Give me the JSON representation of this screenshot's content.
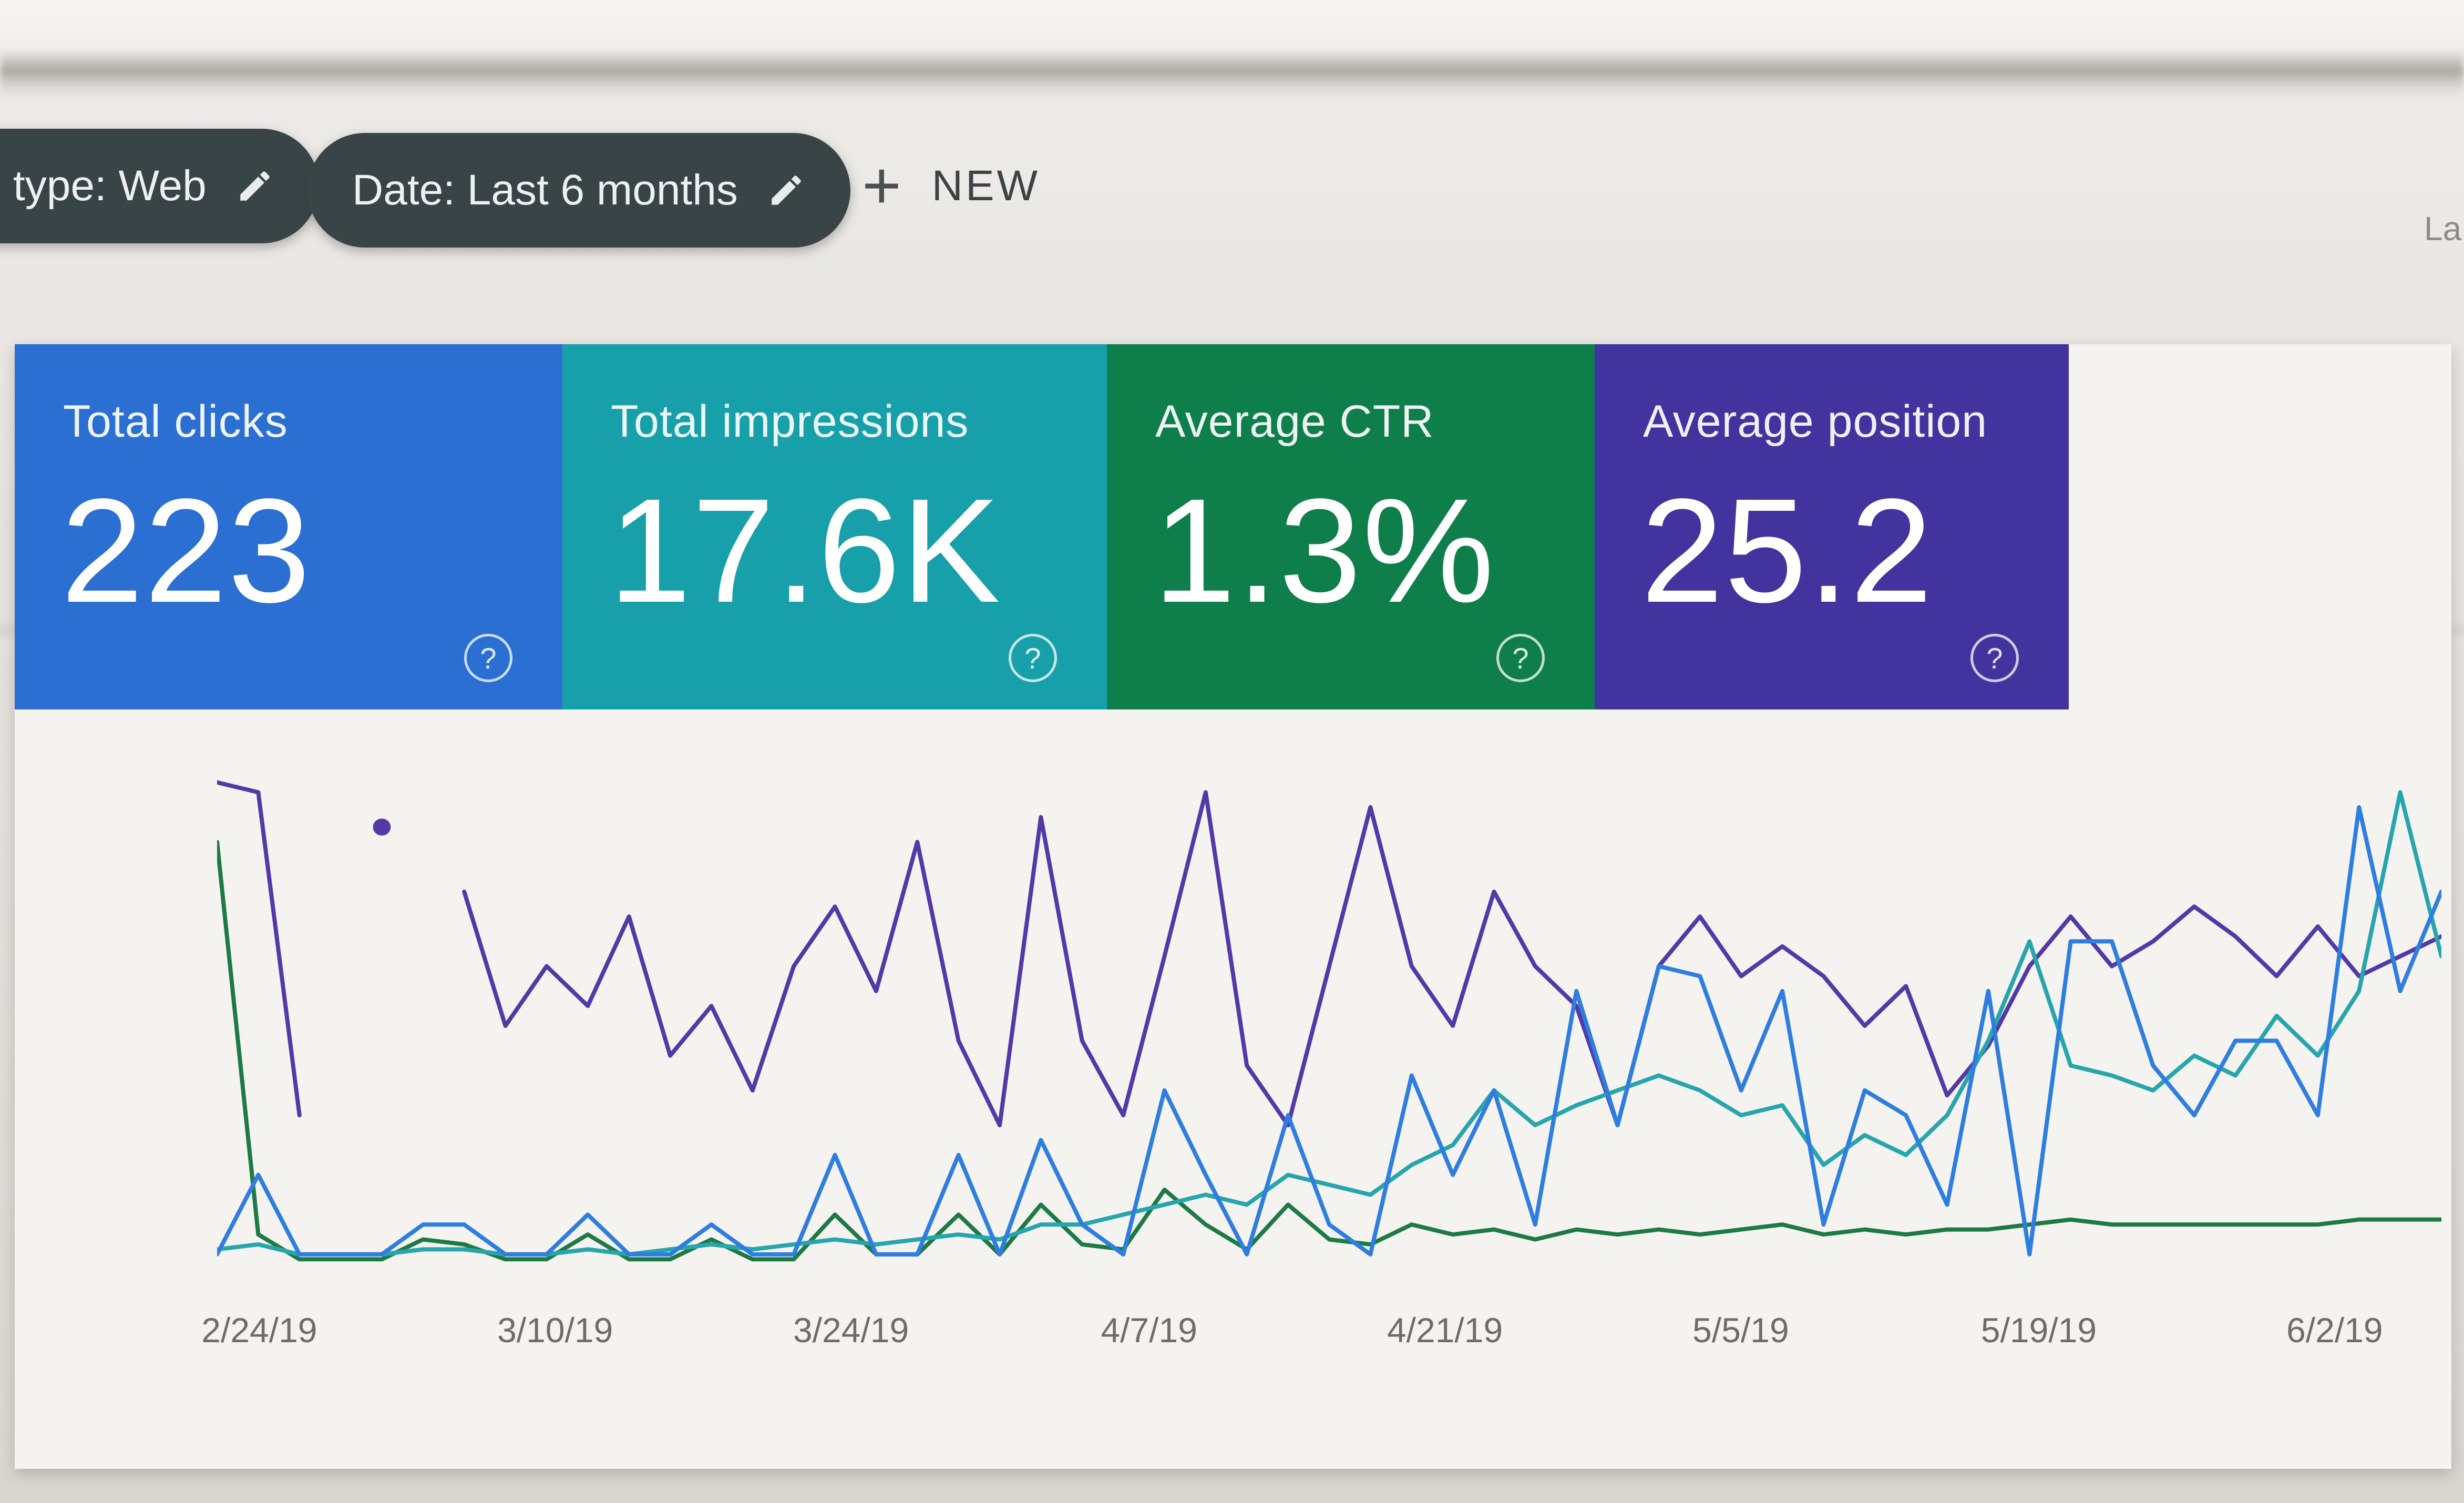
{
  "top_right_partial_text": "La",
  "filter_bar": {
    "chips": [
      {
        "label": "type: Web"
      },
      {
        "label": "Date: Last 6 months"
      }
    ],
    "new_button": {
      "plus": "+",
      "label": "NEW"
    }
  },
  "metric_cards": [
    {
      "label": "Total clicks",
      "value": "223",
      "color": "#2b6fd2",
      "help_icon": "?"
    },
    {
      "label": "Total impressions",
      "value": "17.6K",
      "color": "#18a0aa",
      "help_icon": "?"
    },
    {
      "label": "Average CTR",
      "value": "1.3%",
      "color": "#0e7f4a",
      "help_icon": "?"
    },
    {
      "label": "Average position",
      "value": "25.2",
      "color": "#43339e",
      "help_icon": "?"
    }
  ],
  "chart_data": {
    "type": "line",
    "title": "",
    "xlabel": "",
    "ylabel": "",
    "y_axis_visible": false,
    "grid": false,
    "legend_position": "none",
    "value_units": "percent of plot height (no y-axis labels visible in screenshot)",
    "ylim": [
      0,
      100
    ],
    "x_tick_labels": [
      "2/24/19",
      "3/10/19",
      "3/24/19",
      "4/7/19",
      "4/21/19",
      "5/5/19",
      "5/19/19",
      "6/2/19"
    ],
    "x_tick_positions_pct": [
      1.9,
      15.2,
      28.5,
      41.9,
      55.2,
      68.5,
      81.9,
      95.2
    ],
    "series": [
      {
        "name": "Total clicks",
        "color": "#2e7de0",
        "z": 4,
        "values": [
          2,
          18,
          2,
          2,
          2,
          8,
          8,
          2,
          2,
          10,
          2,
          2,
          8,
          2,
          2,
          22,
          2,
          2,
          22,
          2,
          25,
          8,
          2,
          35,
          18,
          2,
          30,
          8,
          2,
          38,
          18,
          35,
          8,
          55,
          28,
          60,
          58,
          35,
          55,
          8,
          35,
          30,
          12,
          55,
          2,
          65,
          65,
          40,
          30,
          45,
          45,
          30,
          92,
          55,
          75
        ]
      },
      {
        "name": "Total impressions",
        "color": "#27a5ad",
        "z": 3,
        "values": [
          3,
          4,
          2,
          2,
          2,
          3,
          3,
          2,
          2,
          3,
          2,
          3,
          4,
          3,
          4,
          5,
          4,
          5,
          6,
          5,
          8,
          8,
          10,
          12,
          14,
          12,
          18,
          16,
          14,
          20,
          24,
          35,
          28,
          32,
          35,
          38,
          35,
          30,
          32,
          20,
          26,
          22,
          30,
          45,
          65,
          40,
          38,
          35,
          42,
          38,
          50,
          42,
          55,
          95,
          62
        ]
      },
      {
        "name": "Average CTR",
        "color": "#1d7a45",
        "z": 2,
        "values": [
          85,
          6,
          1,
          1,
          1,
          5,
          4,
          1,
          1,
          6,
          1,
          1,
          5,
          1,
          1,
          10,
          2,
          2,
          10,
          2,
          12,
          4,
          3,
          15,
          8,
          3,
          12,
          5,
          4,
          8,
          6,
          7,
          5,
          7,
          6,
          7,
          6,
          7,
          8,
          6,
          7,
          6,
          7,
          7,
          8,
          9,
          8,
          8,
          8,
          8,
          8,
          8,
          9,
          9,
          9
        ]
      },
      {
        "name": "Average position",
        "color": "#5338a8",
        "z": 1,
        "values": [
          97,
          95,
          30,
          null,
          88,
          null,
          75,
          48,
          60,
          52,
          70,
          42,
          52,
          35,
          60,
          72,
          55,
          85,
          45,
          28,
          90,
          45,
          30,
          62,
          95,
          40,
          28,
          60,
          92,
          60,
          48,
          75,
          60,
          52,
          28,
          60,
          70,
          58,
          64,
          58,
          48,
          56,
          34,
          44,
          60,
          70,
          60,
          65,
          72,
          66,
          58,
          68,
          58,
          62,
          66
        ]
      }
    ]
  }
}
